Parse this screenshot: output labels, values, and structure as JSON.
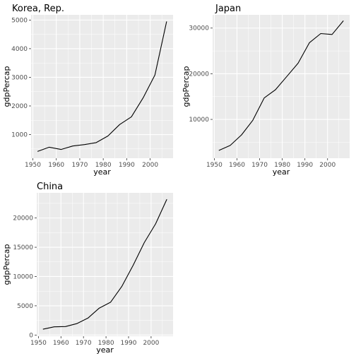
{
  "chart_data": [
    {
      "type": "line",
      "title": "Korea, Rep.",
      "xlabel": "year",
      "ylabel": "gdpPercap",
      "xlim": [
        1949.25,
        2009.75
      ],
      "ylim": [
        174,
        5182
      ],
      "xticks": [
        1950,
        1960,
        1970,
        1980,
        1990,
        2000
      ],
      "yticks": [
        1000,
        2000,
        3000,
        4000,
        5000
      ],
      "grid": true,
      "x": [
        1952,
        1957,
        1962,
        1967,
        1972,
        1977,
        1982,
        1987,
        1992,
        1997,
        2002,
        2007
      ],
      "y": [
        410,
        560,
        480,
        600,
        650,
        720,
        950,
        1350,
        1620,
        2280,
        3080,
        4950
      ]
    },
    {
      "type": "line",
      "title": "Japan",
      "xlabel": "year",
      "ylabel": "gdpPercap",
      "xlim": [
        1949.25,
        2009.75
      ],
      "ylim": [
        1500,
        32900
      ],
      "xticks": [
        1950,
        1960,
        1970,
        1980,
        1990,
        2000
      ],
      "yticks": [
        10000,
        20000,
        30000
      ],
      "grid": true,
      "x": [
        1952,
        1957,
        1962,
        1967,
        1972,
        1977,
        1982,
        1987,
        1992,
        1997,
        2002,
        2007
      ],
      "y": [
        3200,
        4300,
        6600,
        9800,
        14700,
        16500,
        19400,
        22300,
        26800,
        28800,
        28600,
        31600
      ]
    },
    {
      "type": "line",
      "title": "China",
      "xlabel": "year",
      "ylabel": "gdpPercap",
      "xlim": [
        1949.25,
        2009.75
      ],
      "ylim": [
        -200,
        24300
      ],
      "xticks": [
        1950,
        1960,
        1970,
        1980,
        1990,
        2000
      ],
      "yticks": [
        0,
        5000,
        10000,
        15000,
        20000
      ],
      "grid": true,
      "x": [
        1952,
        1957,
        1962,
        1967,
        1972,
        1977,
        1982,
        1987,
        1992,
        1997,
        2002,
        2007
      ],
      "y": [
        1000,
        1400,
        1450,
        1950,
        2900,
        4600,
        5600,
        8300,
        11900,
        15800,
        19000,
        23200
      ]
    }
  ]
}
